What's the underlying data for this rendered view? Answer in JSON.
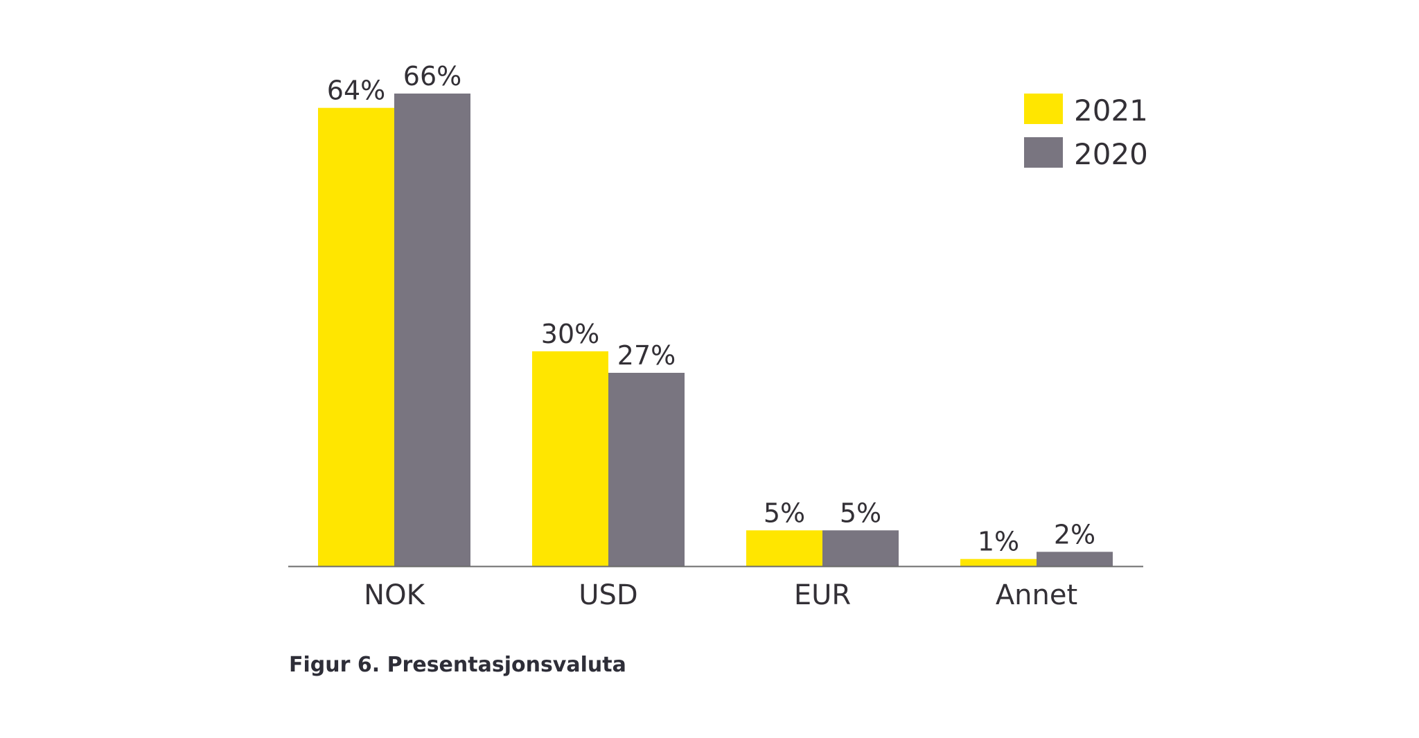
{
  "chart_data": {
    "type": "bar",
    "categories": [
      "NOK",
      "USD",
      "EUR",
      "Annet"
    ],
    "series": [
      {
        "name": "2021",
        "values": [
          64,
          30,
          5,
          1
        ],
        "labels": [
          "64%",
          "30%",
          "5%",
          "1%"
        ],
        "color": "#FFE600"
      },
      {
        "name": "2020",
        "values": [
          66,
          27,
          5,
          2
        ],
        "labels": [
          "66%",
          "27%",
          "5%",
          "2%"
        ],
        "color": "#797580"
      }
    ],
    "ylim": [
      0,
      66
    ],
    "grid": false,
    "legend_position": "top-right",
    "axis_color": "#6b6b6b"
  },
  "caption": "Figur 6. Presentasjonsvaluta"
}
